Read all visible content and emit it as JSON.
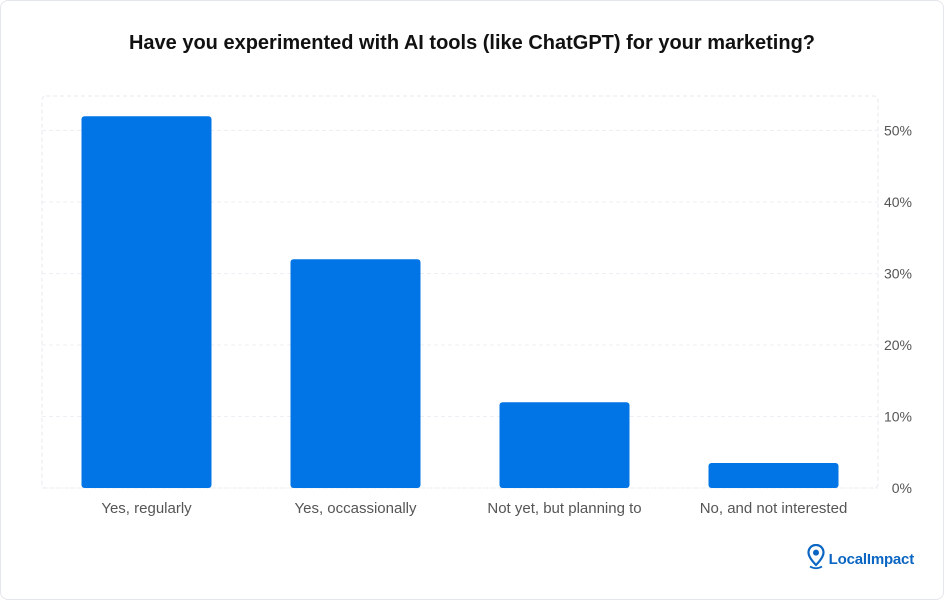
{
  "title": "Have you experimented with AI tools (like ChatGPT) for your marketing?",
  "brand": {
    "name": "LocalImpact",
    "icon": "map-pin-icon",
    "color": "#0a66c2"
  },
  "chart_data": {
    "type": "bar",
    "title": "Have you experimented with AI tools (like ChatGPT) for your marketing?",
    "categories": [
      "Yes, regularly",
      "Yes, occassionally",
      "Not yet, but planning to",
      "No, and not interested"
    ],
    "values": [
      52,
      32,
      12,
      3.5
    ],
    "unit": "%",
    "xlabel": "",
    "ylabel": "",
    "ylim": [
      0,
      50
    ],
    "yticks": [
      0,
      10,
      20,
      30,
      40,
      50
    ],
    "ytick_labels": [
      "0%",
      "10%",
      "20%",
      "30%",
      "40%",
      "50%"
    ],
    "y_axis_side": "right",
    "grid": true,
    "bar_color": "#0275e6",
    "legend": "none"
  }
}
